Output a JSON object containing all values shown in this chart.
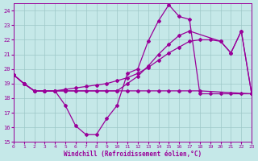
{
  "xlabel": "Windchill (Refroidissement éolien,°C)",
  "bg_color": "#c5e8e8",
  "grid_color": "#9dc8c8",
  "line_color": "#990099",
  "xlim": [
    0,
    23
  ],
  "ylim": [
    15,
    24.5
  ],
  "xticks": [
    0,
    1,
    2,
    3,
    4,
    5,
    6,
    7,
    8,
    9,
    10,
    11,
    12,
    13,
    14,
    15,
    16,
    17,
    18,
    19,
    20,
    21,
    22,
    23
  ],
  "yticks": [
    15,
    16,
    17,
    18,
    19,
    20,
    21,
    22,
    23,
    24
  ],
  "line1_x": [
    0,
    1,
    2,
    3,
    4,
    5,
    6,
    7,
    8,
    9,
    10,
    11,
    12,
    13,
    14,
    15,
    16,
    17,
    18,
    19,
    20,
    21,
    22,
    23
  ],
  "line1_y": [
    19.6,
    19.0,
    18.5,
    18.5,
    18.5,
    17.5,
    16.1,
    15.5,
    15.5,
    16.6,
    17.5,
    19.7,
    20.0,
    21.9,
    23.3,
    24.4,
    23.6,
    23.4,
    18.3,
    18.3,
    18.3,
    18.3,
    18.3,
    18.3
  ],
  "line2_x": [
    0,
    1,
    2,
    3,
    4,
    5,
    6,
    7,
    8,
    9,
    10,
    11,
    12,
    13,
    14,
    15,
    16,
    17,
    18,
    23
  ],
  "line2_y": [
    19.6,
    19.0,
    18.5,
    18.5,
    18.5,
    18.5,
    18.5,
    18.5,
    18.5,
    18.5,
    18.5,
    18.5,
    18.5,
    18.5,
    18.5,
    18.5,
    18.5,
    18.5,
    18.5,
    18.3
  ],
  "line3_x": [
    0,
    1,
    2,
    3,
    4,
    5,
    6,
    7,
    8,
    9,
    10,
    11,
    12,
    13,
    14,
    15,
    16,
    17,
    18,
    19,
    20,
    21,
    22,
    23
  ],
  "line3_y": [
    19.6,
    19.0,
    18.5,
    18.5,
    18.5,
    18.6,
    18.7,
    18.8,
    18.9,
    19.0,
    19.2,
    19.4,
    19.7,
    20.1,
    20.6,
    21.1,
    21.5,
    21.9,
    22.0,
    22.0,
    21.9,
    21.1,
    22.6,
    18.3
  ],
  "line4_x": [
    0,
    1,
    2,
    3,
    4,
    5,
    10,
    11,
    12,
    13,
    14,
    15,
    16,
    17,
    20,
    21,
    22,
    23
  ],
  "line4_y": [
    19.6,
    19.0,
    18.5,
    18.5,
    18.5,
    18.5,
    18.5,
    19.0,
    19.5,
    20.2,
    21.0,
    21.7,
    22.3,
    22.6,
    21.9,
    21.1,
    22.6,
    18.3
  ]
}
